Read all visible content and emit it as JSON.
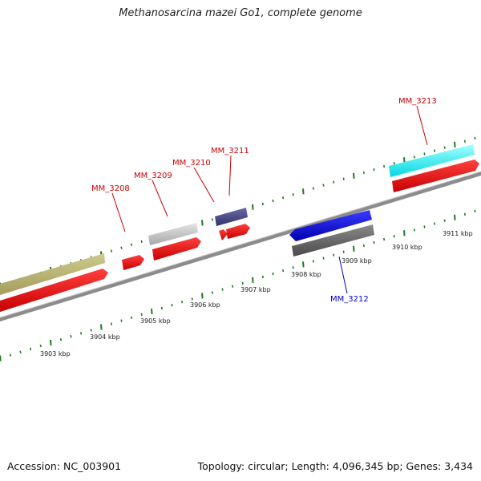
{
  "title": "Methanosarcina mazei Go1, complete genome",
  "footer": {
    "accession": "Accession: NC_003901",
    "summary": "Topology: circular; Length: 4,096,345 bp; Genes: 3,434"
  },
  "colors": {
    "backbone": "#8c8c8c",
    "tick": "#1d7a1d",
    "label_red": "#cc0000",
    "label_blue": "#0000cc"
  },
  "kbp_labels": [
    "3903 kbp",
    "3904 kbp",
    "3905 kbp",
    "3906 kbp",
    "3907 kbp",
    "3908 kbp",
    "3909 kbp",
    "3910 kbp",
    "3911 kbp"
  ],
  "genes": [
    {
      "id": "MM_3208",
      "strand": "+",
      "label_color": "#cc0000"
    },
    {
      "id": "MM_3209",
      "strand": "+",
      "label_color": "#cc0000"
    },
    {
      "id": "MM_3210",
      "strand": "+",
      "label_color": "#cc0000"
    },
    {
      "id": "MM_3211",
      "strand": "+",
      "label_color": "#cc0000"
    },
    {
      "id": "MM_3212",
      "strand": "-",
      "label_color": "#0000cc"
    },
    {
      "id": "MM_3213",
      "strand": "+",
      "label_color": "#cc0000"
    }
  ]
}
